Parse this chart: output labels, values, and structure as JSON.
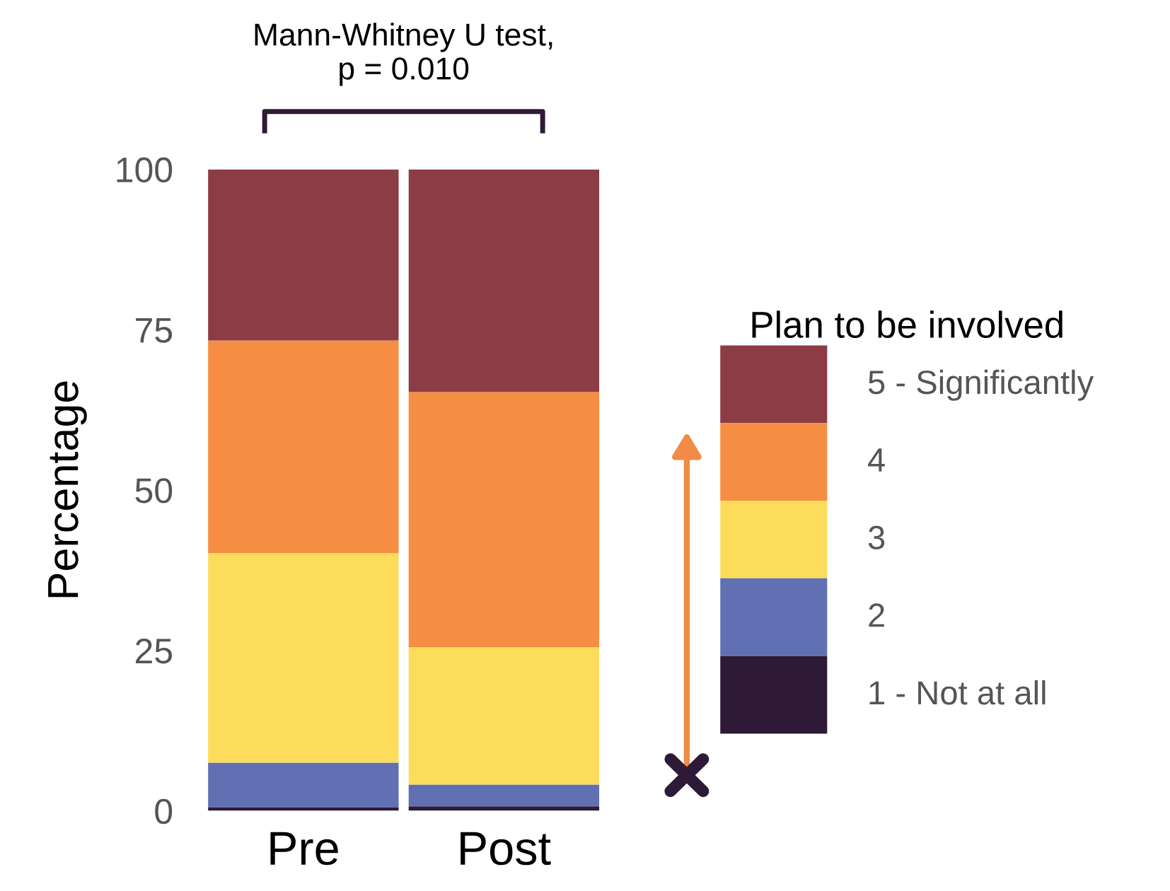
{
  "chart_data": {
    "type": "bar",
    "stacked": true,
    "categories": [
      "Pre",
      "Post"
    ],
    "ylabel": "Percentage",
    "legend_title": "Plan to be involved",
    "legend": "right",
    "ylim": [
      0,
      100
    ],
    "yticks": [
      0,
      25,
      50,
      75,
      100
    ],
    "grid": false,
    "annotations": [
      "Mann-Whitney U test,\np = 0.010"
    ],
    "series": [
      {
        "name": "1 - Not at all",
        "color": "#2e1a36",
        "values": [
          0.5,
          0.7
        ]
      },
      {
        "name": "2",
        "color": "#6170b3",
        "values": [
          7.0,
          3.4
        ]
      },
      {
        "name": "3",
        "color": "#fcdc5a",
        "values": [
          32.7,
          21.4
        ]
      },
      {
        "name": "4",
        "color": "#f58d42",
        "values": [
          33.1,
          39.8
        ]
      },
      {
        "name": "5 - Significantly",
        "color": "#8b3c45",
        "values": [
          26.7,
          34.7
        ]
      }
    ]
  }
}
